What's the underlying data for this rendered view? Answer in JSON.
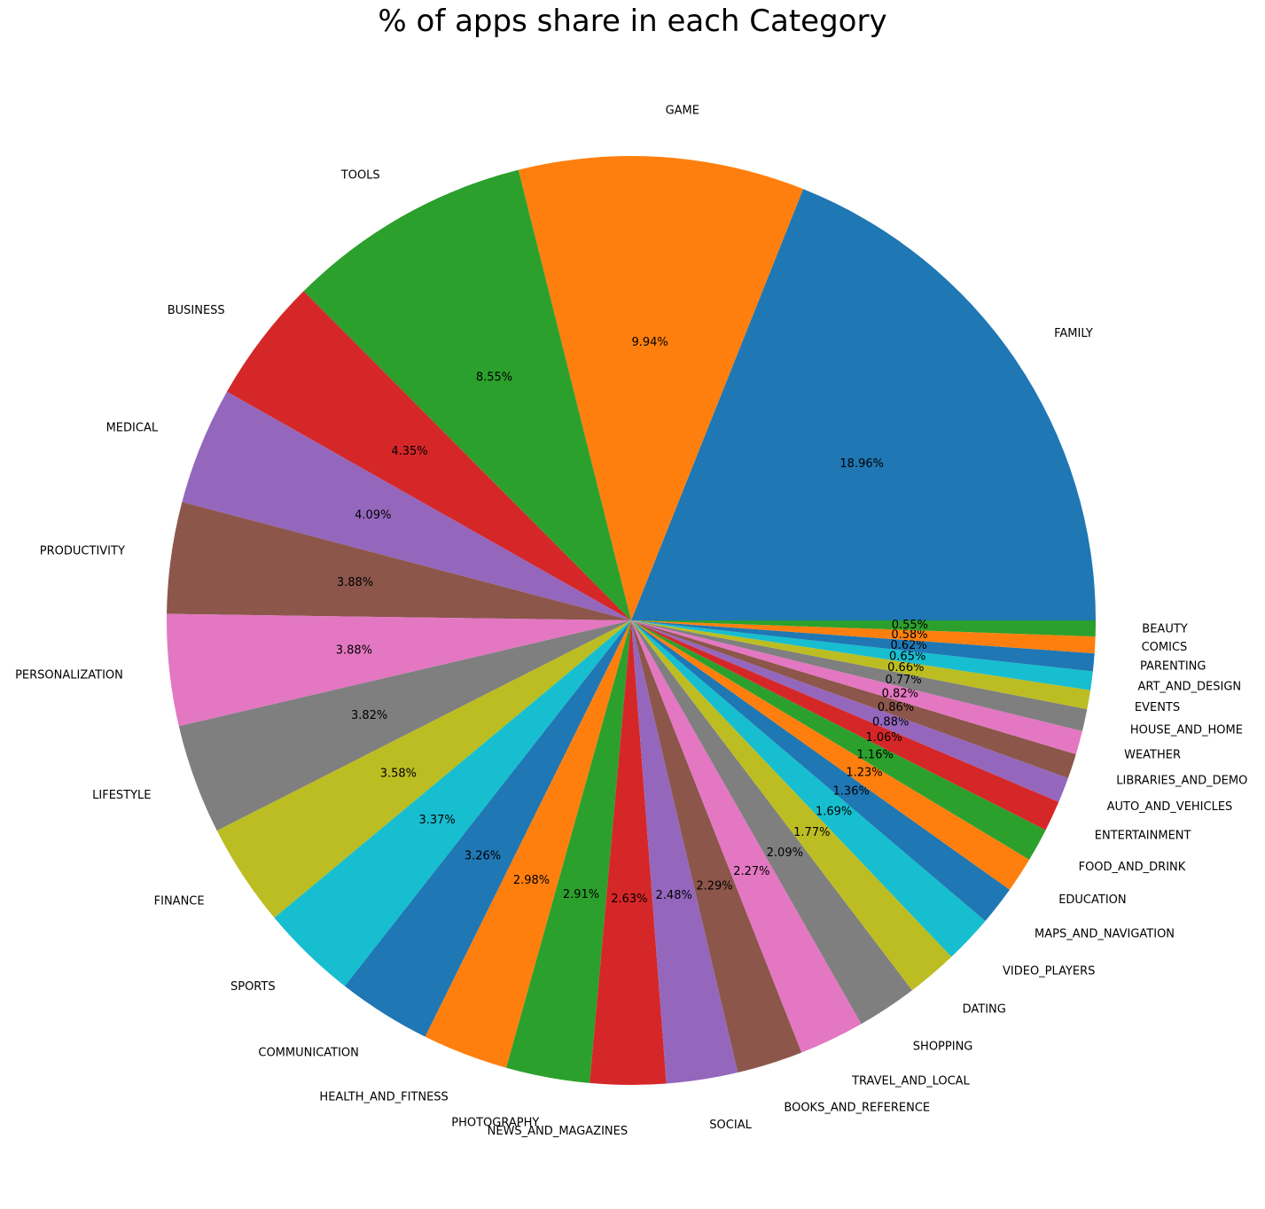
{
  "chart_data": {
    "type": "pie",
    "title": "% of apps share in each Category",
    "start_angle_deg": 0,
    "direction": "counterclockwise",
    "categories": [
      "FAMILY",
      "GAME",
      "TOOLS",
      "BUSINESS",
      "MEDICAL",
      "PRODUCTIVITY",
      "PERSONALIZATION",
      "LIFESTYLE",
      "FINANCE",
      "SPORTS",
      "COMMUNICATION",
      "HEALTH_AND_FITNESS",
      "PHOTOGRAPHY",
      "NEWS_AND_MAGAZINES",
      "SOCIAL",
      "BOOKS_AND_REFERENCE",
      "TRAVEL_AND_LOCAL",
      "SHOPPING",
      "DATING",
      "VIDEO_PLAYERS",
      "MAPS_AND_NAVIGATION",
      "EDUCATION",
      "FOOD_AND_DRINK",
      "ENTERTAINMENT",
      "AUTO_AND_VEHICLES",
      "LIBRARIES_AND_DEMO",
      "WEATHER",
      "HOUSE_AND_HOME",
      "EVENTS",
      "ART_AND_DESIGN",
      "PARENTING",
      "COMICS",
      "BEAUTY"
    ],
    "values": [
      18.96,
      9.94,
      8.55,
      4.35,
      4.09,
      3.88,
      3.88,
      3.82,
      3.58,
      3.37,
      3.26,
      2.98,
      2.91,
      2.63,
      2.48,
      2.29,
      2.27,
      2.09,
      1.77,
      1.69,
      1.36,
      1.23,
      1.16,
      1.06,
      0.88,
      0.86,
      0.82,
      0.77,
      0.66,
      0.65,
      0.62,
      0.58,
      0.55
    ],
    "value_labels": [
      "18.96%",
      "9.94%",
      "8.55%",
      "4.35%",
      "4.09%",
      "3.88%",
      "3.88%",
      "3.82%",
      "3.58%",
      "3.37%",
      "3.26%",
      "2.98%",
      "2.91%",
      "2.63%",
      "2.48%",
      "2.29%",
      "2.27%",
      "2.09%",
      "1.77%",
      "1.69%",
      "1.36%",
      "1.23%",
      "1.16%",
      "1.06%",
      "0.88%",
      "0.86%",
      "0.82%",
      "0.77%",
      "0.66%",
      "0.65%",
      "0.62%",
      "0.58%",
      "0.55%"
    ],
    "colors": [
      "#1f77b4",
      "#ff7f0e",
      "#2ca02c",
      "#d62728",
      "#9467bd",
      "#8c564b",
      "#e377c2",
      "#7f7f7f",
      "#bcbd22",
      "#17becf"
    ]
  }
}
